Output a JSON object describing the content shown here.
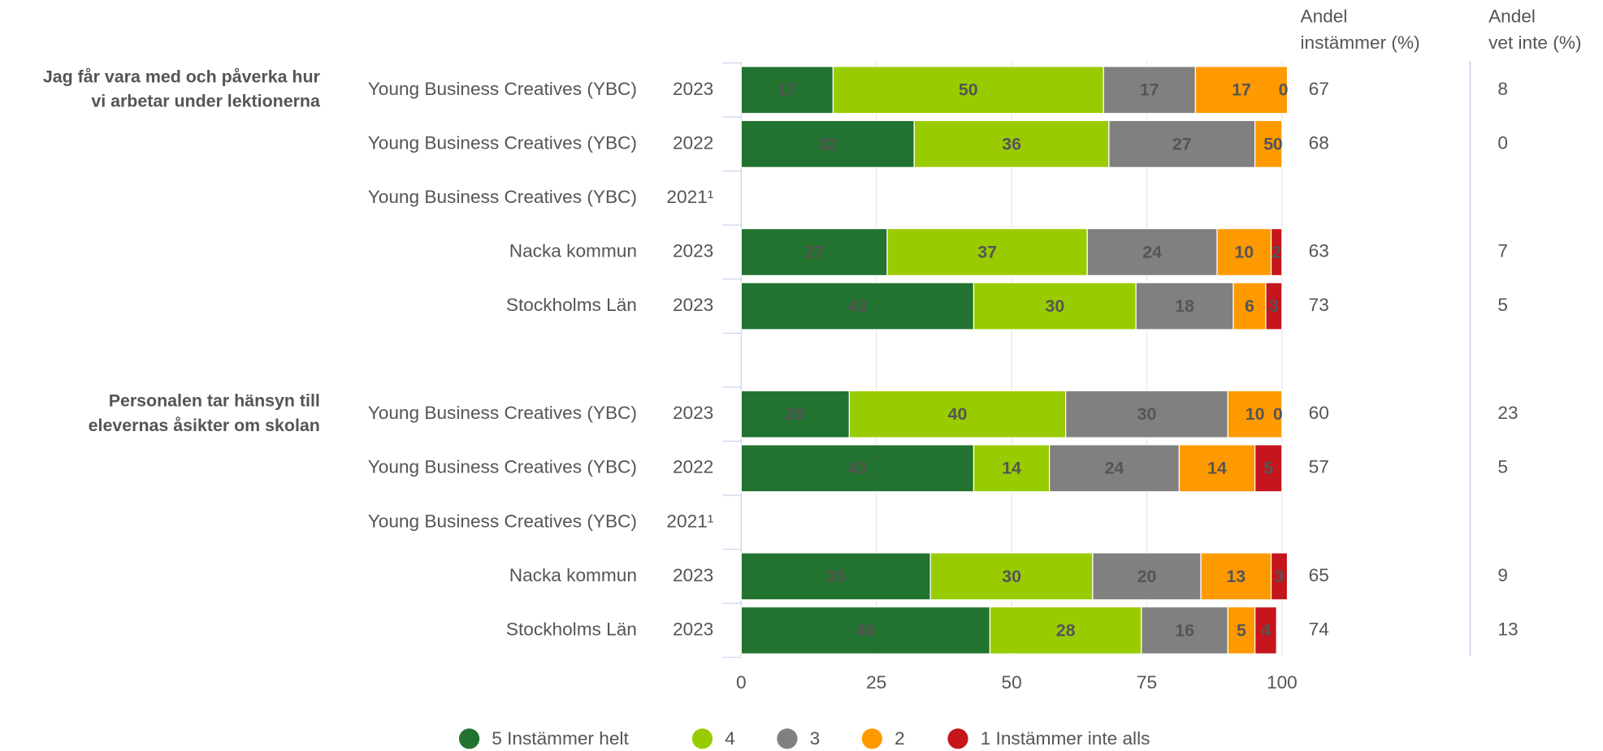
{
  "chart_data": {
    "type": "bar",
    "orientation": "horizontal",
    "stacked": true,
    "group_labels": [
      [
        "Jag får vara med och påverka hur",
        "vi arbetar under lektionerna"
      ],
      [
        "Personalen tar hänsyn till",
        "elevernas åsikter om skolan"
      ]
    ],
    "categories": [
      "Young Business Creatives (YBC)",
      "Young Business Creatives (YBC)",
      "Young Business Creatives (YBC)",
      "Nacka kommun",
      "Stockholms Län",
      "Young Business Creatives (YBC)",
      "Young Business Creatives (YBC)",
      "Young Business Creatives (YBC)",
      "Nacka kommun",
      "Stockholms Län"
    ],
    "years": [
      "2023",
      "2022",
      "2021¹",
      "2023",
      "2023",
      "2023",
      "2022",
      "2021¹",
      "2023",
      "2023"
    ],
    "series": [
      {
        "name": "5 Instämmer helt",
        "color": "#237330",
        "label_color": "#ffffff",
        "values": [
          17,
          32,
          null,
          27,
          43,
          20,
          43,
          null,
          35,
          46
        ]
      },
      {
        "name": "4",
        "color": "#99cc00",
        "label_color": "#222222",
        "values": [
          50,
          36,
          null,
          37,
          30,
          40,
          14,
          null,
          30,
          28
        ]
      },
      {
        "name": "3",
        "color": "#808080",
        "label_color": "#222222",
        "values": [
          17,
          27,
          null,
          24,
          18,
          30,
          24,
          null,
          20,
          16
        ]
      },
      {
        "name": "2",
        "color": "#ff9900",
        "label_color": "#222222",
        "values": [
          17,
          5,
          null,
          10,
          6,
          10,
          14,
          null,
          13,
          5
        ]
      },
      {
        "name": "1 Instämmer inte alls",
        "color": "#c4161c",
        "label_color": "#ffffff",
        "values": [
          0,
          0,
          null,
          2,
          3,
          0,
          5,
          null,
          3,
          4
        ]
      }
    ],
    "xlim": [
      0,
      100
    ],
    "xticks": [
      0,
      25,
      50,
      75,
      100
    ],
    "grid": true,
    "columns": [
      {
        "header": [
          "Andel",
          "instämmer (%)"
        ],
        "values": [
          67,
          68,
          null,
          63,
          73,
          60,
          57,
          null,
          65,
          74
        ]
      },
      {
        "header": [
          "Andel",
          "vet inte (%)"
        ],
        "values": [
          8,
          0,
          null,
          7,
          5,
          23,
          5,
          null,
          9,
          13
        ]
      }
    ],
    "legend": "bottom"
  }
}
